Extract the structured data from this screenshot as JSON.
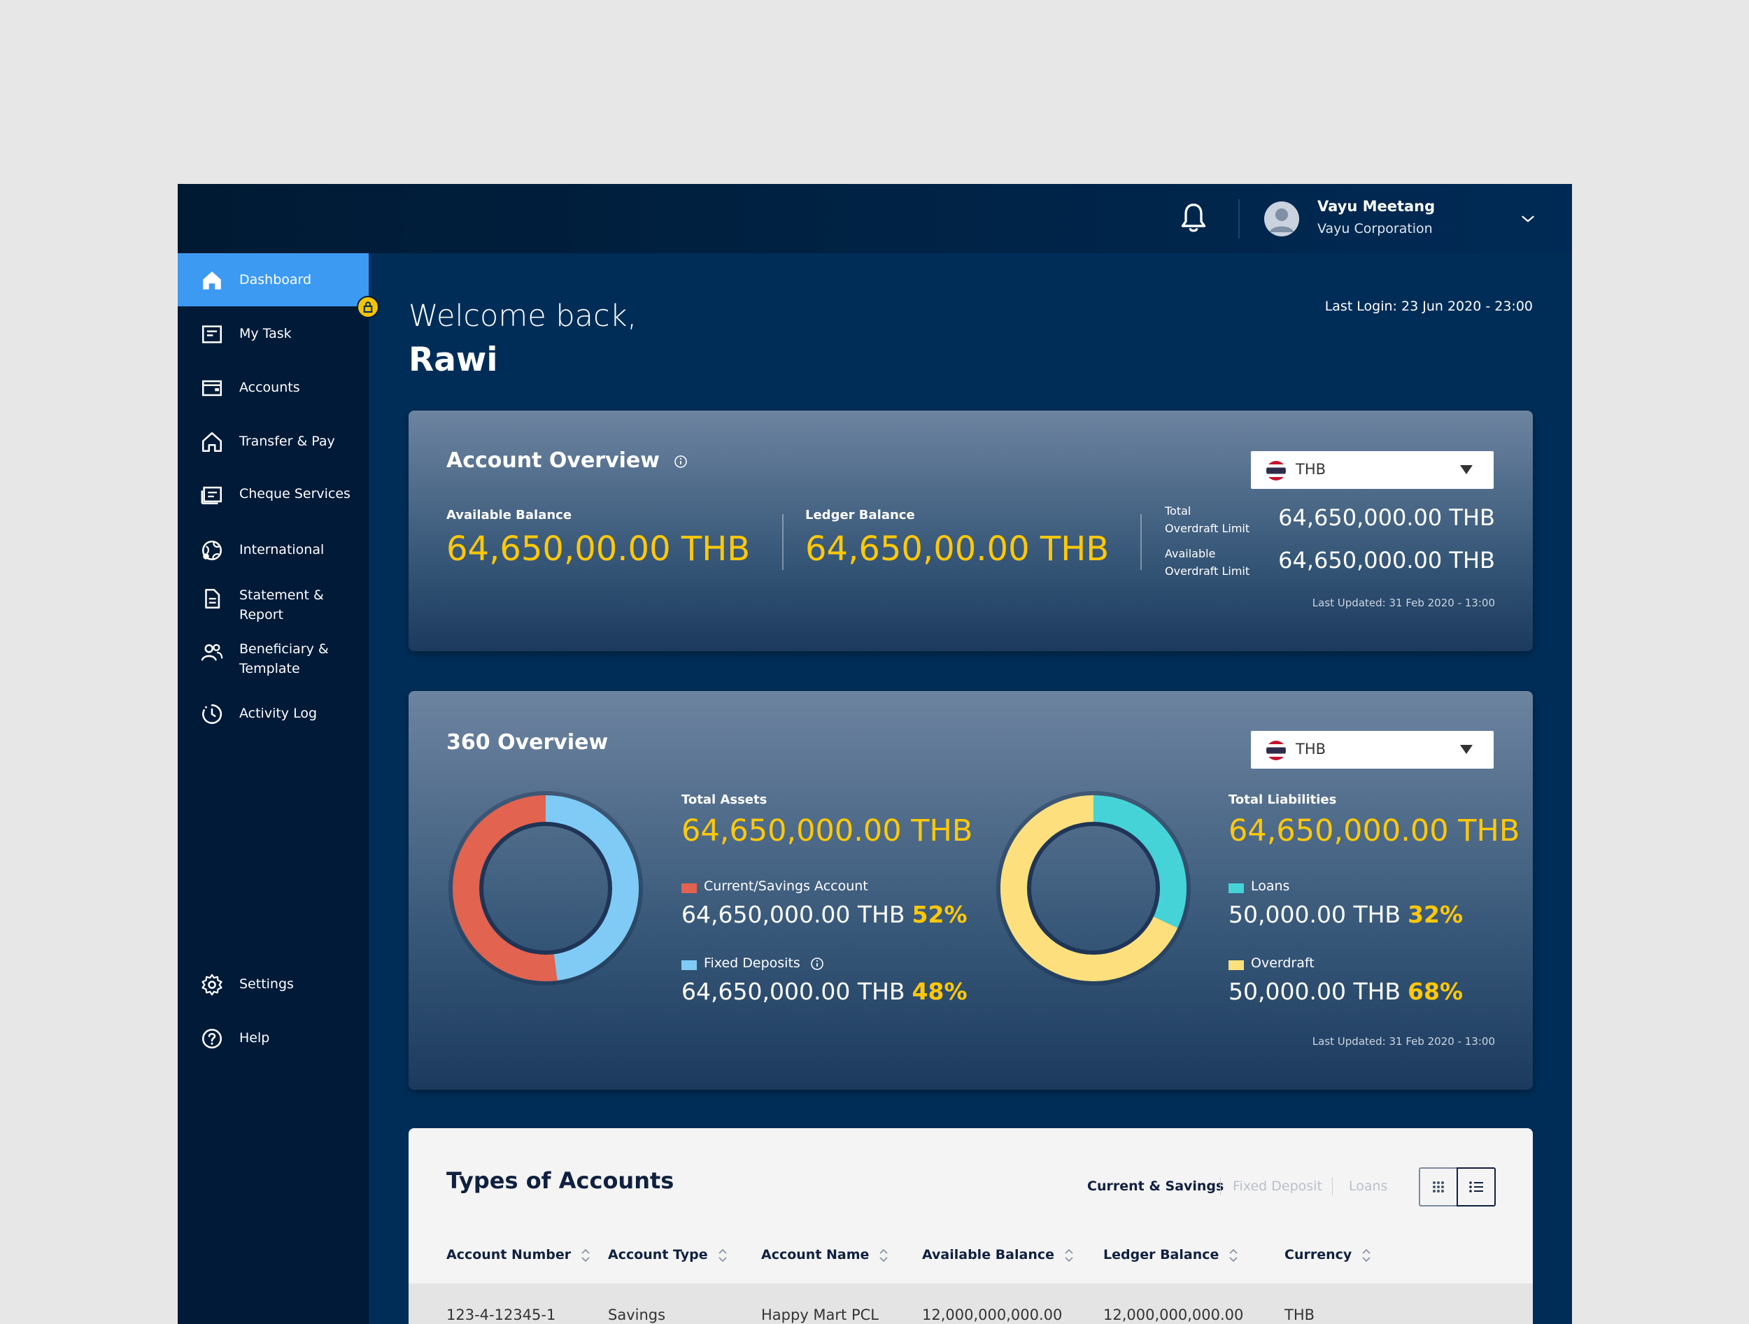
{
  "user": {
    "name": "Vayu Meetang",
    "company": "Vayu Corporation"
  },
  "sidebar": {
    "items": [
      {
        "label": "Dashboard",
        "icon": "home-icon"
      },
      {
        "label": "My Task",
        "icon": "task-icon"
      },
      {
        "label": "Accounts",
        "icon": "wallet-icon"
      },
      {
        "label": "Transfer & Pay",
        "icon": "transfer-icon"
      },
      {
        "label": "Cheque Services",
        "icon": "cheque-icon"
      },
      {
        "label": "International",
        "icon": "globe-icon"
      },
      {
        "label": "Statement &",
        "label2": "Report",
        "icon": "document-icon"
      },
      {
        "label": "Beneficiary &",
        "label2": "Template",
        "icon": "users-icon"
      },
      {
        "label": "Activity Log",
        "icon": "clock-icon"
      },
      {
        "label": "Settings",
        "icon": "gear-icon"
      },
      {
        "label": "Help",
        "icon": "help-icon"
      }
    ]
  },
  "welcome": {
    "line1": "Welcome back,",
    "name": "Rawi",
    "last_login": "Last Login: 23 Jun 2020 - 23:00"
  },
  "overview": {
    "title": "Account Overview",
    "currency": "THB",
    "available_label": "Available Balance",
    "available_value": "64,650,00.00 THB",
    "ledger_label": "Ledger Balance",
    "ledger_value": "64,650,00.00 THB",
    "total_od_label1": "Total",
    "total_od_label2": "Overdraft Limit",
    "total_od_value": "64,650,000.00 THB",
    "avail_od_label1": "Available",
    "avail_od_label2": "Overdraft Limit",
    "avail_od_value": "64,650,000.00 THB",
    "updated": "Last Updated: 31 Feb 2020 - 13:00"
  },
  "overview360": {
    "title": "360 Overview",
    "currency": "THB",
    "assets": {
      "label": "Total Assets",
      "value": "64,650,000.00 THB",
      "items": [
        {
          "label": "Current/Savings Account",
          "value": "64,650,000.00 THB",
          "pct": "52%",
          "fraction": 0.52,
          "color": "#e2634f"
        },
        {
          "label": "Fixed Deposits",
          "value": "64,650,000.00 THB",
          "pct": "48%",
          "fraction": 0.48,
          "color": "#7fcbf5"
        }
      ]
    },
    "liabilities": {
      "label": "Total Liabilities",
      "value": "64,650,000.00 THB",
      "items": [
        {
          "label": "Loans",
          "value": "50,000.00 THB",
          "pct": "32%",
          "fraction": 0.32,
          "color": "#45d3d8"
        },
        {
          "label": "Overdraft",
          "value": "50,000.00 THB",
          "pct": "68%",
          "fraction": 0.68,
          "color": "#fde07d"
        }
      ]
    },
    "updated": "Last Updated: 31 Feb 2020 - 13:00"
  },
  "accounts": {
    "title": "Types of Accounts",
    "filters": [
      "Current & Savings",
      "Fixed Deposit",
      "Loans"
    ],
    "columns": [
      "Account Number",
      "Account Type",
      "Account Name",
      "Available Balance",
      "Ledger Balance",
      "Currency"
    ],
    "rows": [
      [
        "123-4-12345-1",
        "Savings",
        "Happy Mart PCL",
        "12,000,000,000.00",
        "12,000,000,000.00",
        "THB"
      ]
    ]
  },
  "colors": {
    "accent": "#3d9af2",
    "highlight": "#ffc80a",
    "navy": "#002d57"
  }
}
